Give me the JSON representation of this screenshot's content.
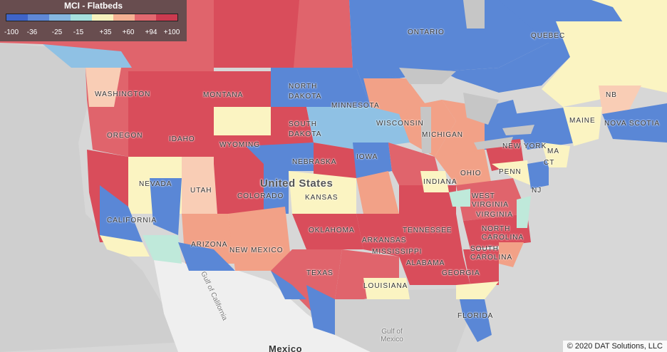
{
  "legend": {
    "title": "MCI - Flatbeds",
    "ticks": [
      "-100",
      "-36",
      "-25",
      "-15",
      "+35",
      "+60",
      "+94",
      "+100"
    ],
    "colors": [
      "#3f64c8",
      "#5f88d6",
      "#86b7e1",
      "#a7e0df",
      "#f7f1bd",
      "#f5b193",
      "#e2686f",
      "#cc3a4f"
    ]
  },
  "colors": {
    "strong_red": "#d94d5b",
    "red": "#e0646c",
    "salmon": "#f2a187",
    "peach": "#f9cdb5",
    "cream": "#fbf4c2",
    "mint": "#bfe9da",
    "light_blue": "#8fc1e4",
    "blue": "#5a87d6",
    "land_gray": "#d7d7d7",
    "mexico": "#efefef",
    "water": "#c8c8c8"
  },
  "labels": {
    "ontario": "ONTARIO",
    "quebec": "QUEBEC",
    "washington": "WASHINGTON",
    "montana": "MONTANA",
    "north_dakota": "NORTH DAKOTA",
    "minnesota": "MINNESOTA",
    "south_dakota": "SOUTH DAKOTA",
    "wisconsin": "WISCONSIN",
    "michigan": "MICHIGAN",
    "oregon": "OREGON",
    "idaho": "IDAHO",
    "wyoming": "WYOMING",
    "nebraska": "NEBRASKA",
    "iowa": "IOWA",
    "nevada": "NEVADA",
    "utah": "UTAH",
    "colorado": "COLORADO",
    "kansas": "KANSAS",
    "united_states": "United States",
    "california": "CALIFORNIA",
    "arizona": "ARIZONA",
    "new_mexico": "NEW MEXICO",
    "oklahoma": "OKLAHOMA",
    "arkansas": "ARKANSAS",
    "tennessee": "TENNESSEE",
    "mississippi": "MISSISSIPPI",
    "alabama": "ALABAMA",
    "georgia": "GEORGIA",
    "texas": "TEXAS",
    "louisiana": "LOUISIANA",
    "florida": "FLORIDA",
    "indiana": "INDIANA",
    "ohio": "OHIO",
    "west_virginia": "WEST VIRGINIA",
    "virginia": "VIRGINIA",
    "north_carolina": "NORTH CAROLINA",
    "south_carolina": "SOUTH CAROLINA",
    "pennsylvania": "PENN",
    "new_york": "NEW YORK",
    "new_jersey": "NJ",
    "connecticut": "CT",
    "massachusetts": "MA",
    "maine": "MAINE",
    "new_brunswick": "NB",
    "nova_scotia": "NOVA SCOTIA",
    "mexico": "Mexico",
    "gulf_of_california": "Gulf of California",
    "gulf_of_mexico": "Gulf of Mexico"
  },
  "attribution": "© 2020 DAT Solutions, LLC"
}
